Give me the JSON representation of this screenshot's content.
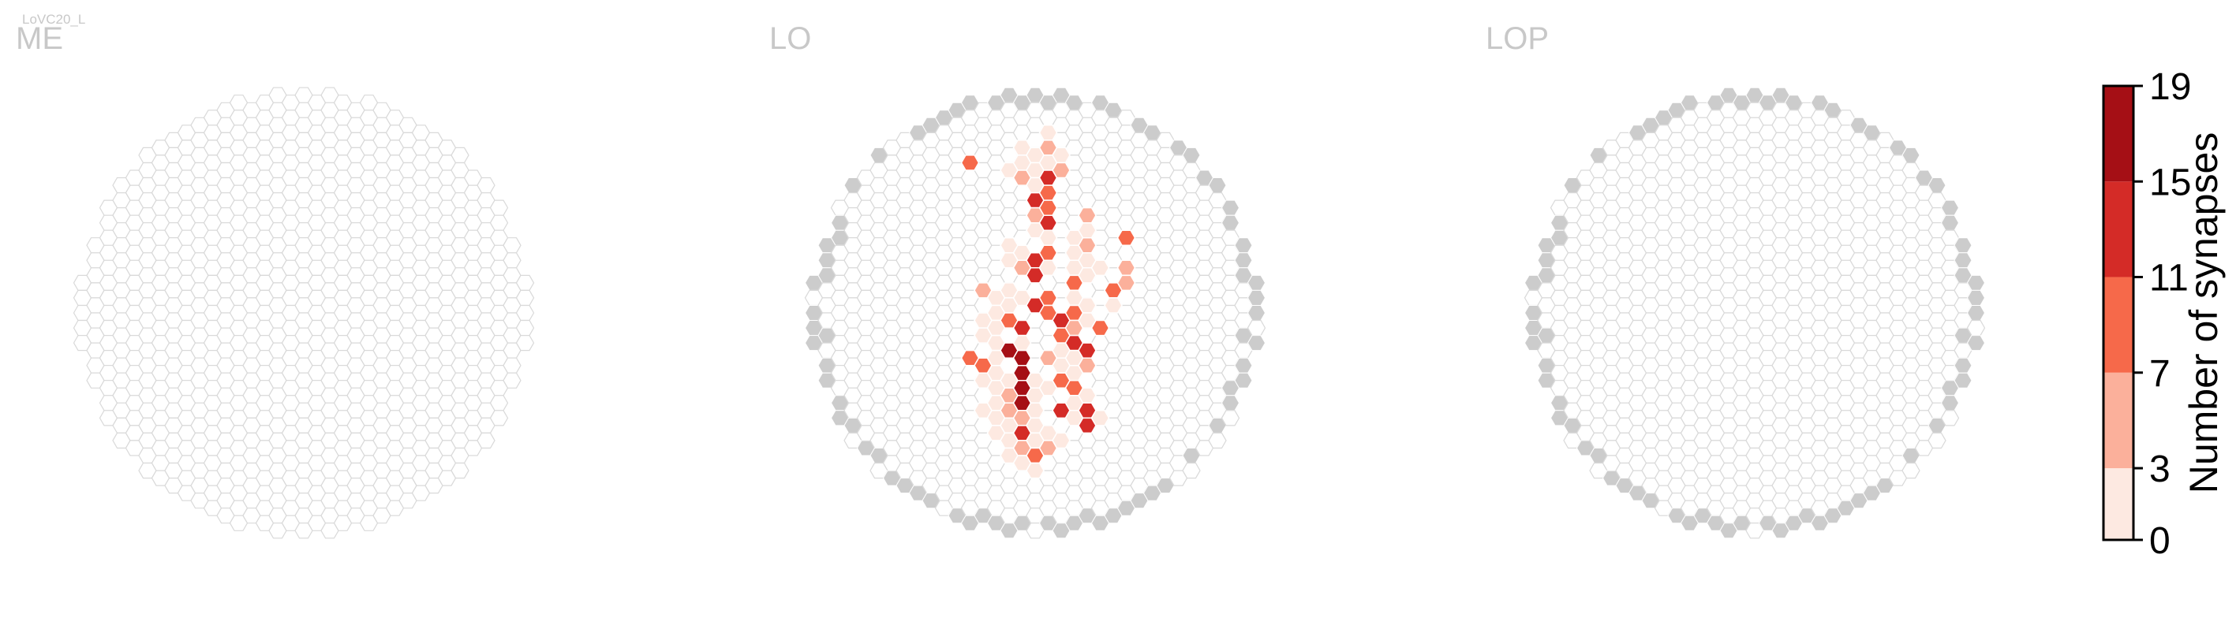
{
  "cell_type_label": "LoVC20_L",
  "panels": [
    {
      "id": "ME",
      "label": "ME"
    },
    {
      "id": "LO",
      "label": "LO"
    },
    {
      "id": "LOP",
      "label": "LOP"
    }
  ],
  "colorbar": {
    "title": "Number of synapses",
    "tick_labels": [
      "0",
      "3",
      "7",
      "11",
      "15",
      "19"
    ],
    "bins": [
      {
        "min": 0,
        "max": 3,
        "color": "#fde9e1"
      },
      {
        "min": 3,
        "max": 7,
        "color": "#fbb09b"
      },
      {
        "min": 7,
        "max": 11,
        "color": "#f6694a"
      },
      {
        "min": 11,
        "max": 15,
        "color": "#d42b27"
      },
      {
        "min": 15,
        "max": 19,
        "color": "#a50f15"
      }
    ]
  },
  "chart_data": {
    "type": "heatmap",
    "title": "",
    "value_range": [
      0,
      19
    ],
    "empty_color": "#ffffff",
    "no_data_color": "#cccccc",
    "note_keys": "cells are [column, row, synapse count] on the hexagonal eye-column lattice",
    "panels": [
      {
        "name": "ME",
        "cells": []
      },
      {
        "name": "LO",
        "cells": [
          [
            18,
            5,
            1
          ],
          [
            16,
            6,
            1
          ],
          [
            17,
            6,
            1
          ],
          [
            18,
            6,
            4
          ],
          [
            19,
            6,
            1
          ],
          [
            12,
            7,
            9
          ],
          [
            15,
            7,
            2
          ],
          [
            16,
            7,
            1
          ],
          [
            17,
            7,
            1
          ],
          [
            18,
            7,
            1
          ],
          [
            19,
            7,
            4
          ],
          [
            16,
            8,
            4
          ],
          [
            17,
            8,
            2
          ],
          [
            18,
            8,
            13
          ],
          [
            17,
            9,
            14
          ],
          [
            18,
            9,
            10
          ],
          [
            17,
            10,
            5
          ],
          [
            18,
            10,
            10
          ],
          [
            21,
            10,
            4
          ],
          [
            17,
            11,
            2
          ],
          [
            18,
            11,
            14
          ],
          [
            21,
            11,
            1
          ],
          [
            15,
            12,
            2
          ],
          [
            18,
            12,
            1
          ],
          [
            20,
            12,
            1
          ],
          [
            21,
            12,
            5
          ],
          [
            24,
            12,
            10
          ],
          [
            15,
            13,
            1
          ],
          [
            16,
            13,
            1
          ],
          [
            17,
            13,
            13
          ],
          [
            18,
            13,
            11
          ],
          [
            20,
            13,
            1
          ],
          [
            21,
            13,
            1
          ],
          [
            16,
            14,
            5
          ],
          [
            17,
            14,
            12
          ],
          [
            18,
            14,
            2
          ],
          [
            20,
            14,
            1
          ],
          [
            21,
            14,
            1
          ],
          [
            22,
            14,
            1
          ],
          [
            24,
            14,
            4
          ],
          [
            13,
            15,
            5
          ],
          [
            15,
            15,
            1
          ],
          [
            20,
            15,
            9
          ],
          [
            23,
            15,
            9
          ],
          [
            24,
            15,
            5
          ],
          [
            14,
            16,
            1
          ],
          [
            15,
            16,
            2
          ],
          [
            16,
            16,
            1
          ],
          [
            17,
            16,
            13
          ],
          [
            18,
            16,
            10
          ],
          [
            20,
            16,
            2
          ],
          [
            21,
            16,
            1
          ],
          [
            23,
            16,
            1
          ],
          [
            13,
            17,
            1
          ],
          [
            14,
            17,
            3
          ],
          [
            15,
            17,
            10
          ],
          [
            18,
            17,
            11
          ],
          [
            19,
            17,
            12
          ],
          [
            20,
            17,
            11
          ],
          [
            21,
            17,
            1
          ],
          [
            13,
            18,
            2
          ],
          [
            14,
            18,
            1
          ],
          [
            16,
            18,
            14
          ],
          [
            19,
            18,
            10
          ],
          [
            20,
            18,
            4
          ],
          [
            22,
            18,
            10
          ],
          [
            14,
            19,
            1
          ],
          [
            15,
            19,
            17
          ],
          [
            16,
            19,
            1
          ],
          [
            19,
            19,
            1
          ],
          [
            20,
            19,
            12
          ],
          [
            21,
            19,
            13
          ],
          [
            12,
            20,
            10
          ],
          [
            13,
            20,
            10
          ],
          [
            14,
            20,
            2
          ],
          [
            16,
            20,
            18
          ],
          [
            18,
            20,
            5
          ],
          [
            19,
            20,
            1
          ],
          [
            20,
            20,
            2
          ],
          [
            21,
            20,
            4
          ],
          [
            13,
            21,
            2
          ],
          [
            14,
            21,
            1
          ],
          [
            15,
            21,
            1
          ],
          [
            16,
            21,
            17
          ],
          [
            17,
            21,
            1
          ],
          [
            19,
            21,
            10
          ],
          [
            20,
            21,
            1
          ],
          [
            14,
            22,
            1
          ],
          [
            15,
            22,
            5
          ],
          [
            16,
            22,
            17
          ],
          [
            17,
            22,
            2
          ],
          [
            18,
            22,
            1
          ],
          [
            20,
            22,
            9
          ],
          [
            21,
            22,
            1
          ],
          [
            13,
            23,
            1
          ],
          [
            14,
            23,
            2
          ],
          [
            15,
            23,
            4
          ],
          [
            16,
            23,
            18
          ],
          [
            17,
            23,
            1
          ],
          [
            19,
            23,
            13
          ],
          [
            20,
            23,
            2
          ],
          [
            21,
            23,
            14
          ],
          [
            14,
            24,
            1
          ],
          [
            15,
            24,
            1
          ],
          [
            16,
            24,
            5
          ],
          [
            17,
            24,
            1
          ],
          [
            20,
            24,
            1
          ],
          [
            21,
            24,
            12
          ],
          [
            22,
            24,
            1
          ],
          [
            14,
            25,
            2
          ],
          [
            15,
            25,
            1
          ],
          [
            16,
            25,
            12
          ],
          [
            17,
            25,
            1
          ],
          [
            18,
            25,
            1
          ],
          [
            19,
            25,
            1
          ],
          [
            15,
            26,
            1
          ],
          [
            16,
            26,
            5
          ],
          [
            17,
            26,
            10
          ],
          [
            18,
            26,
            4
          ],
          [
            16,
            27,
            1
          ],
          [
            17,
            27,
            1
          ]
        ]
      },
      {
        "name": "LOP",
        "cells": []
      }
    ]
  }
}
